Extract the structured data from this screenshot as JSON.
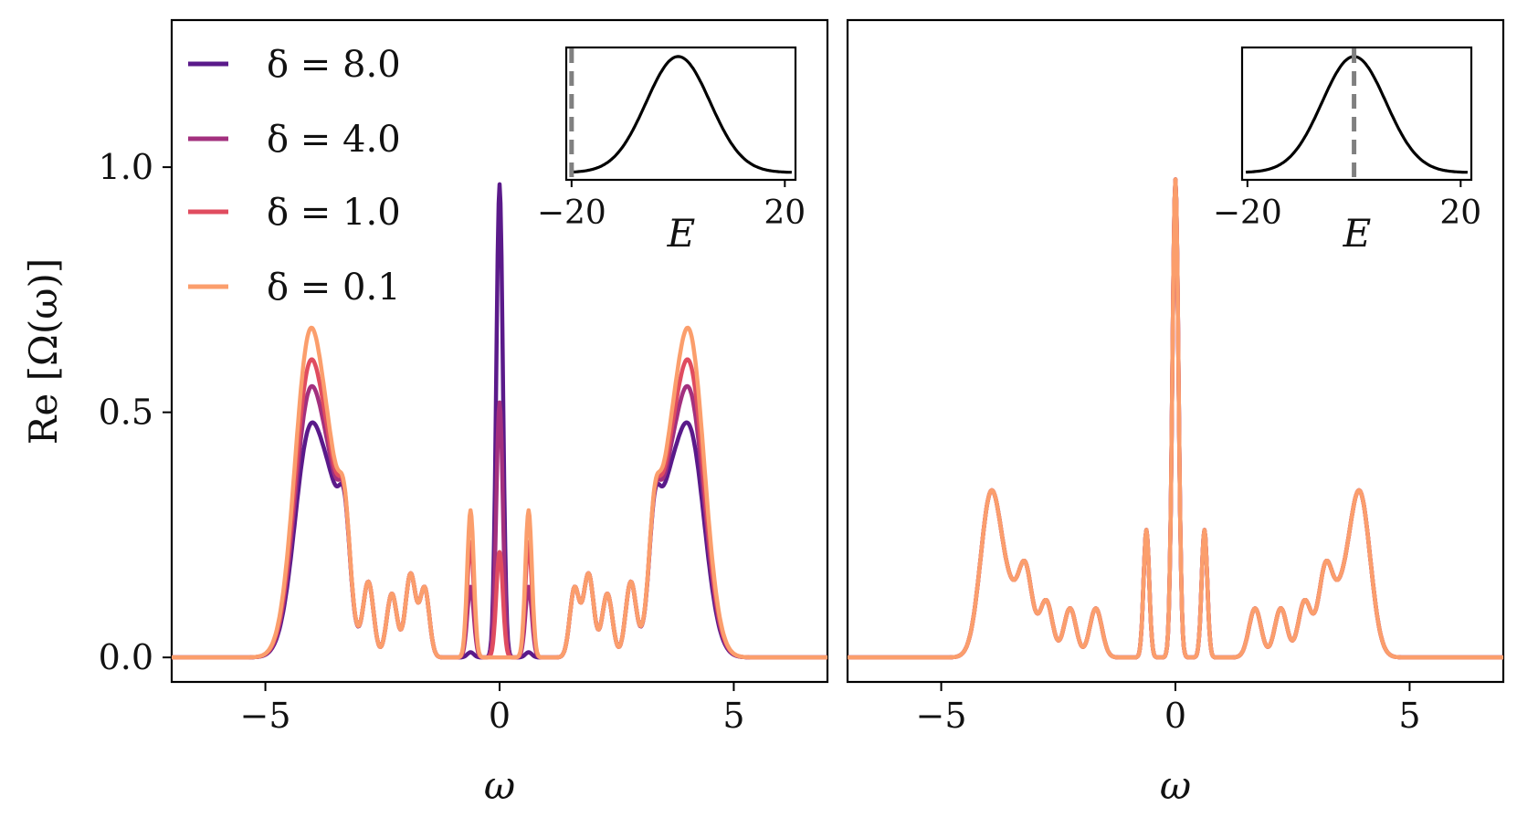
{
  "chart_data": [
    {
      "type": "line",
      "panel": "left",
      "ylabel": "Re [Ω(ω)]",
      "xlabel": "ω",
      "xlim": [
        -7,
        7
      ],
      "ylim": [
        -0.05,
        1.3
      ],
      "xticks": [
        -5,
        0,
        5
      ],
      "xtick_labels": [
        "−5",
        "0",
        "5"
      ],
      "yticks": [
        0.0,
        0.5,
        1.0
      ],
      "ytick_labels": [
        "0.0",
        "0.5",
        "1.0"
      ],
      "legend_position": "top-left",
      "series": [
        {
          "name": "δ = 8.0",
          "color": "#5a1a8a",
          "side_peak": 0.455,
          "center_peak": 0.965
        },
        {
          "name": "δ = 4.0",
          "color": "#a3307e",
          "side_peak": 0.53,
          "center_peak": 0.52
        },
        {
          "name": "δ = 1.0",
          "color": "#e04c5f",
          "side_peak": 0.585,
          "center_peak": 0.215
        },
        {
          "name": "δ = 0.1",
          "color": "#fb9e6c",
          "side_peak": 0.65,
          "center_peak": 0.0
        }
      ],
      "inset": {
        "xlabel": "E",
        "xticks": [
          -20,
          20
        ],
        "xtick_labels": [
          "−20",
          "20"
        ],
        "xlim": [
          -21,
          22
        ],
        "gaussian_center": 0,
        "gaussian_sigma": 6,
        "marker_E": -20
      }
    },
    {
      "type": "line",
      "panel": "right",
      "xlabel": "ω",
      "xlim": [
        -7,
        7
      ],
      "ylim": [
        -0.05,
        1.3
      ],
      "xticks": [
        -5,
        0,
        5
      ],
      "xtick_labels": [
        "−5",
        "0",
        "5"
      ],
      "series": [
        {
          "name": "δ = 8.0",
          "color": "#5a1a8a",
          "side_peak": 0.295,
          "center_peak": 0.975
        },
        {
          "name": "δ = 4.0",
          "color": "#a3307e",
          "side_peak": 0.295,
          "center_peak": 0.975
        },
        {
          "name": "δ = 1.0",
          "color": "#e04c5f",
          "side_peak": 0.295,
          "center_peak": 0.975
        },
        {
          "name": "δ = 0.1",
          "color": "#fb9e6c",
          "side_peak": 0.295,
          "center_peak": 0.975
        }
      ],
      "inset": {
        "xlabel": "E",
        "xticks": [
          -20,
          20
        ],
        "xtick_labels": [
          "−20",
          "20"
        ],
        "xlim": [
          -21,
          22
        ],
        "gaussian_center": 0,
        "gaussian_sigma": 6,
        "marker_E": 0
      }
    }
  ]
}
